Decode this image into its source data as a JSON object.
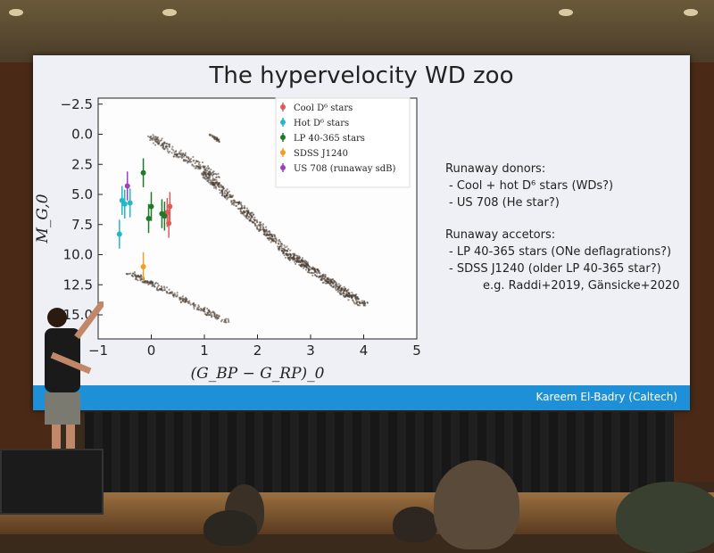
{
  "slide": {
    "title": "The hypervelocity WD zoo",
    "footer": "Kareem El-Badry (Caltech)",
    "bullets": {
      "section1_head": "Runaway donors:",
      "section1_items": [
        "- Cool + hot D⁶ stars (WDs?)",
        "- US 708 (He star?)"
      ],
      "section2_head": "Runaway accetors:",
      "section2_items": [
        "- LP 40-365 stars (ONe deflagrations?)",
        "- SDSS J1240 (older LP 40-365 star?)"
      ],
      "reference": "e.g. Raddi+2019, Gänsicke+2020"
    }
  },
  "chart_data": {
    "type": "scatter",
    "title": "",
    "xlabel": "(G_BP − G_RP)_0",
    "ylabel": "M_G,0",
    "xlim": [
      -1,
      5
    ],
    "ylim": [
      -3,
      17
    ],
    "y_inverted": true,
    "x_ticks": [
      "−1",
      "0",
      "1",
      "2",
      "3",
      "4",
      "5"
    ],
    "y_ticks": [
      "−2.5",
      "0.0",
      "2.5",
      "5.0",
      "7.5",
      "10.0",
      "12.5",
      "15.0"
    ],
    "legend_position": "top-right",
    "legend": [
      {
        "label": "Cool D⁶ stars",
        "color": "#e05a5a"
      },
      {
        "label": "Hot D⁶ stars",
        "color": "#22b8c8"
      },
      {
        "label": "LP 40-365 stars",
        "color": "#1e7a2a"
      },
      {
        "label": "SDSS J1240",
        "color": "#f0a020"
      },
      {
        "label": "US 708 (runaway sdB)",
        "color": "#a040c0"
      }
    ],
    "series": [
      {
        "name": "Cool D⁶ stars",
        "points": [
          [
            0.35,
            6.0
          ],
          [
            0.3,
            6.5
          ],
          [
            0.33,
            7.4
          ]
        ]
      },
      {
        "name": "Hot D⁶ stars",
        "points": [
          [
            -0.6,
            8.3
          ],
          [
            -0.55,
            5.5
          ],
          [
            -0.5,
            5.8
          ],
          [
            -0.4,
            5.7
          ]
        ]
      },
      {
        "name": "LP 40-365 stars",
        "points": [
          [
            -0.15,
            3.2
          ],
          [
            -0.05,
            7.0
          ],
          [
            0.0,
            6.0
          ],
          [
            0.2,
            6.6
          ],
          [
            0.25,
            6.8
          ]
        ]
      },
      {
        "name": "SDSS J1240",
        "points": [
          [
            -0.15,
            11.0
          ]
        ]
      },
      {
        "name": "US 708 (runaway sdB)",
        "points": [
          [
            -0.45,
            4.3
          ]
        ]
      }
    ]
  }
}
